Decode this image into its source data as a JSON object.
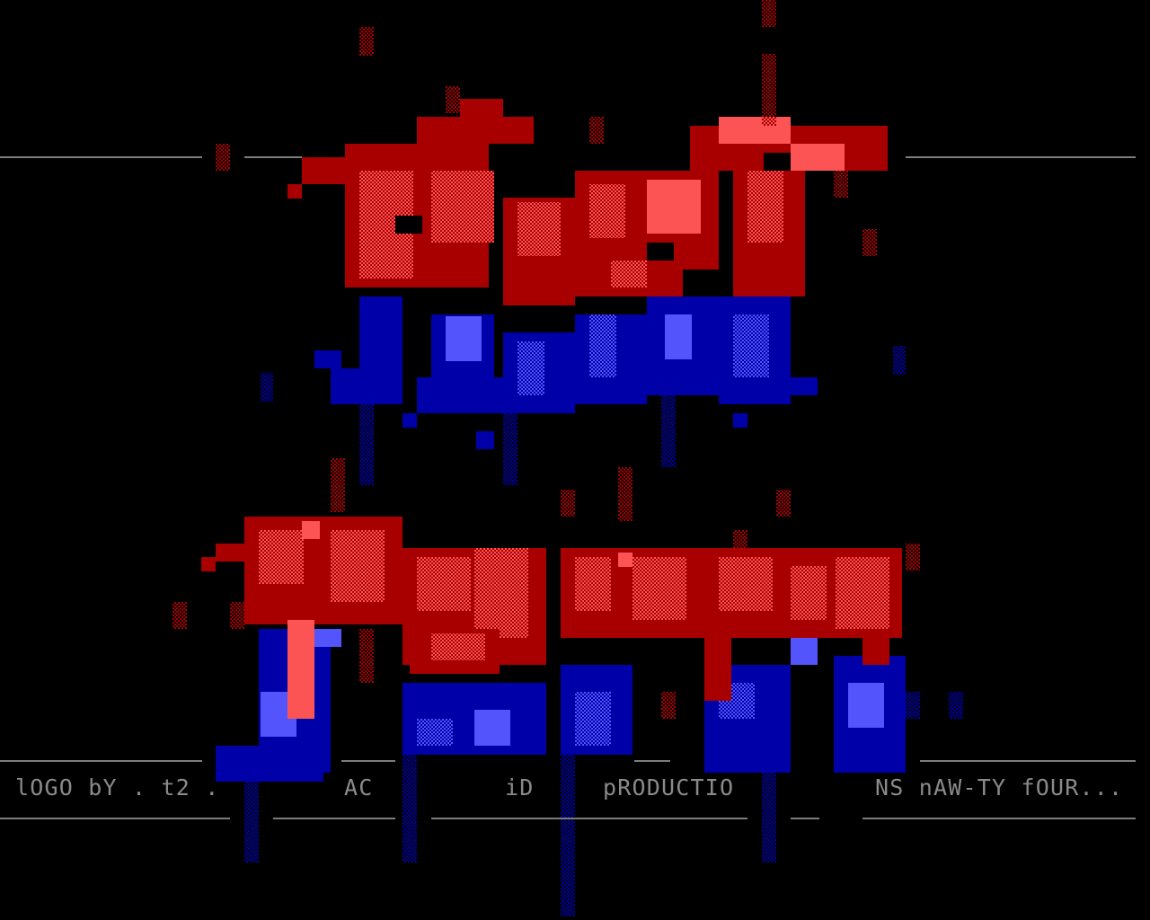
{
  "artwork": {
    "title_logo": "ANSI logo (red and blue block art)",
    "colors": {
      "background": "#000000",
      "red_dark": "#a80000",
      "red_light": "#fc5454",
      "blue_dark": "#0000a8",
      "blue_light": "#5454fc",
      "text_gray": "#8a8a8a",
      "rule_gray": "#7c7c7c"
    }
  },
  "credits": {
    "segment_1": "lOGO bY . t2 .",
    "segment_2": "AC",
    "segment_3": "iD",
    "segment_4": "pRODUCTIO",
    "segment_5": "NS nAW-TY fOUR..."
  }
}
